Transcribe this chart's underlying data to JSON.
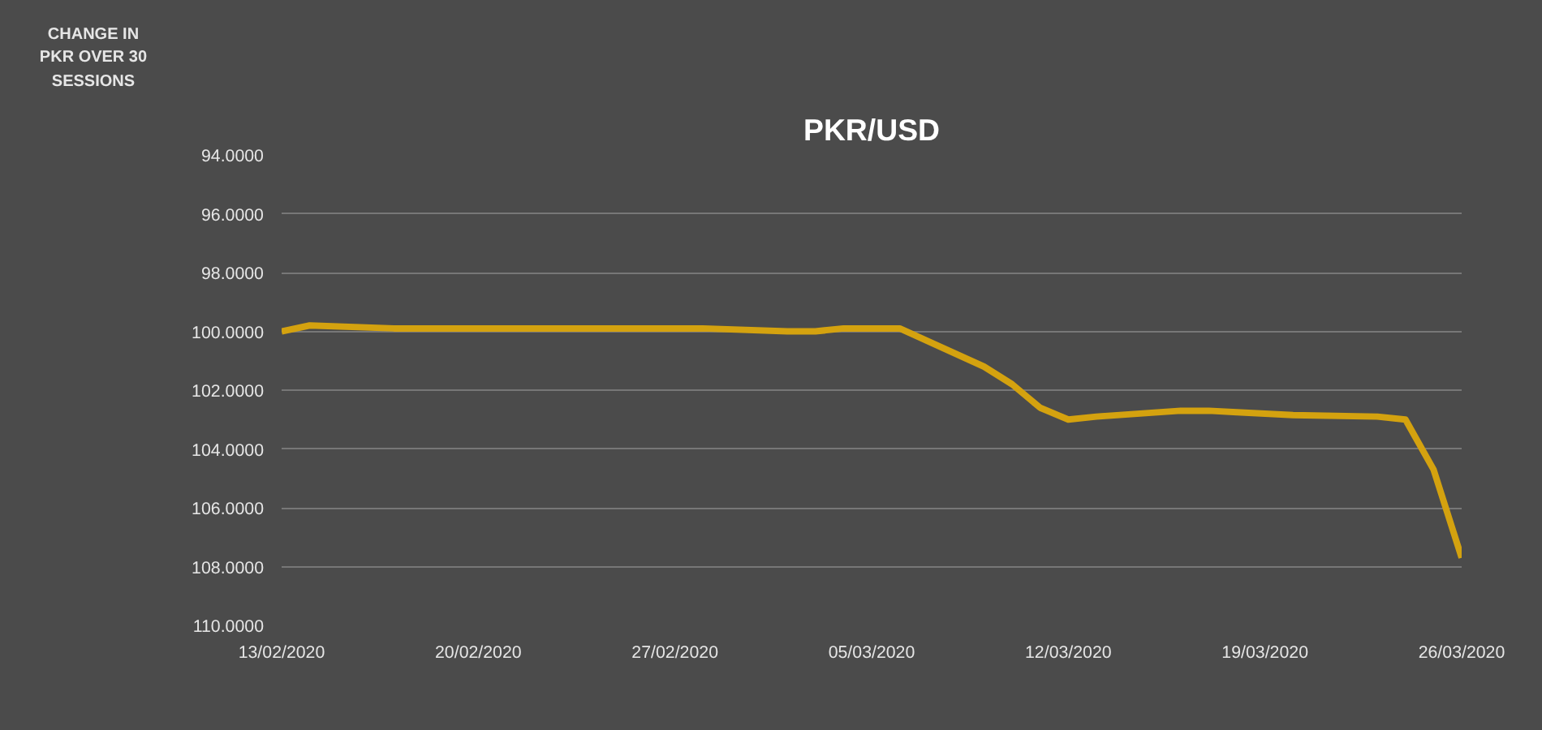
{
  "chart_data": {
    "type": "line",
    "title": "PKR/USD",
    "ylabel": "CHANGE IN PKR OVER 30 SESSIONS",
    "x": [
      "2020-02-13",
      "2020-02-14",
      "2020-02-17",
      "2020-02-18",
      "2020-02-19",
      "2020-02-20",
      "2020-02-21",
      "2020-02-24",
      "2020-02-25",
      "2020-02-26",
      "2020-02-27",
      "2020-02-28",
      "2020-03-02",
      "2020-03-03",
      "2020-03-04",
      "2020-03-05",
      "2020-03-06",
      "2020-03-09",
      "2020-03-10",
      "2020-03-11",
      "2020-03-12",
      "2020-03-13",
      "2020-03-16",
      "2020-03-17",
      "2020-03-18",
      "2020-03-19",
      "2020-03-20",
      "2020-03-23",
      "2020-03-24",
      "2020-03-25",
      "2020-03-26"
    ],
    "series": [
      {
        "color": "#d4a20f",
        "values": [
          100.0,
          99.8,
          99.9,
          99.9,
          99.9,
          99.9,
          99.9,
          99.9,
          99.9,
          99.9,
          99.9,
          99.9,
          100.0,
          100.0,
          99.9,
          99.9,
          99.9,
          101.2,
          101.8,
          102.6,
          103.0,
          102.9,
          102.7,
          102.7,
          102.75,
          102.8,
          102.85,
          102.9,
          103.0,
          104.7,
          107.7
        ]
      }
    ],
    "xlim": [
      "2020-02-13",
      "2020-03-26"
    ],
    "xticks": [
      {
        "value": "2020-02-13",
        "label": "13/02/2020"
      },
      {
        "value": "2020-02-20",
        "label": "20/02/2020"
      },
      {
        "value": "2020-02-27",
        "label": "27/02/2020"
      },
      {
        "value": "2020-03-05",
        "label": "05/03/2020"
      },
      {
        "value": "2020-03-12",
        "label": "12/03/2020"
      },
      {
        "value": "2020-03-19",
        "label": "19/03/2020"
      },
      {
        "value": "2020-03-26",
        "label": "26/03/2020"
      }
    ],
    "ylim": [
      110,
      94
    ],
    "yticks": [
      {
        "value": 94,
        "label": "94.0000"
      },
      {
        "value": 96,
        "label": "96.0000"
      },
      {
        "value": 98,
        "label": "98.0000"
      },
      {
        "value": 100,
        "label": "100.0000"
      },
      {
        "value": 102,
        "label": "102.0000"
      },
      {
        "value": 104,
        "label": "104.0000"
      },
      {
        "value": 106,
        "label": "106.0000"
      },
      {
        "value": 108,
        "label": "108.0000"
      },
      {
        "value": 110,
        "label": "110.0000"
      }
    ],
    "grid": "y",
    "marker": "none",
    "line_style": "solid"
  }
}
